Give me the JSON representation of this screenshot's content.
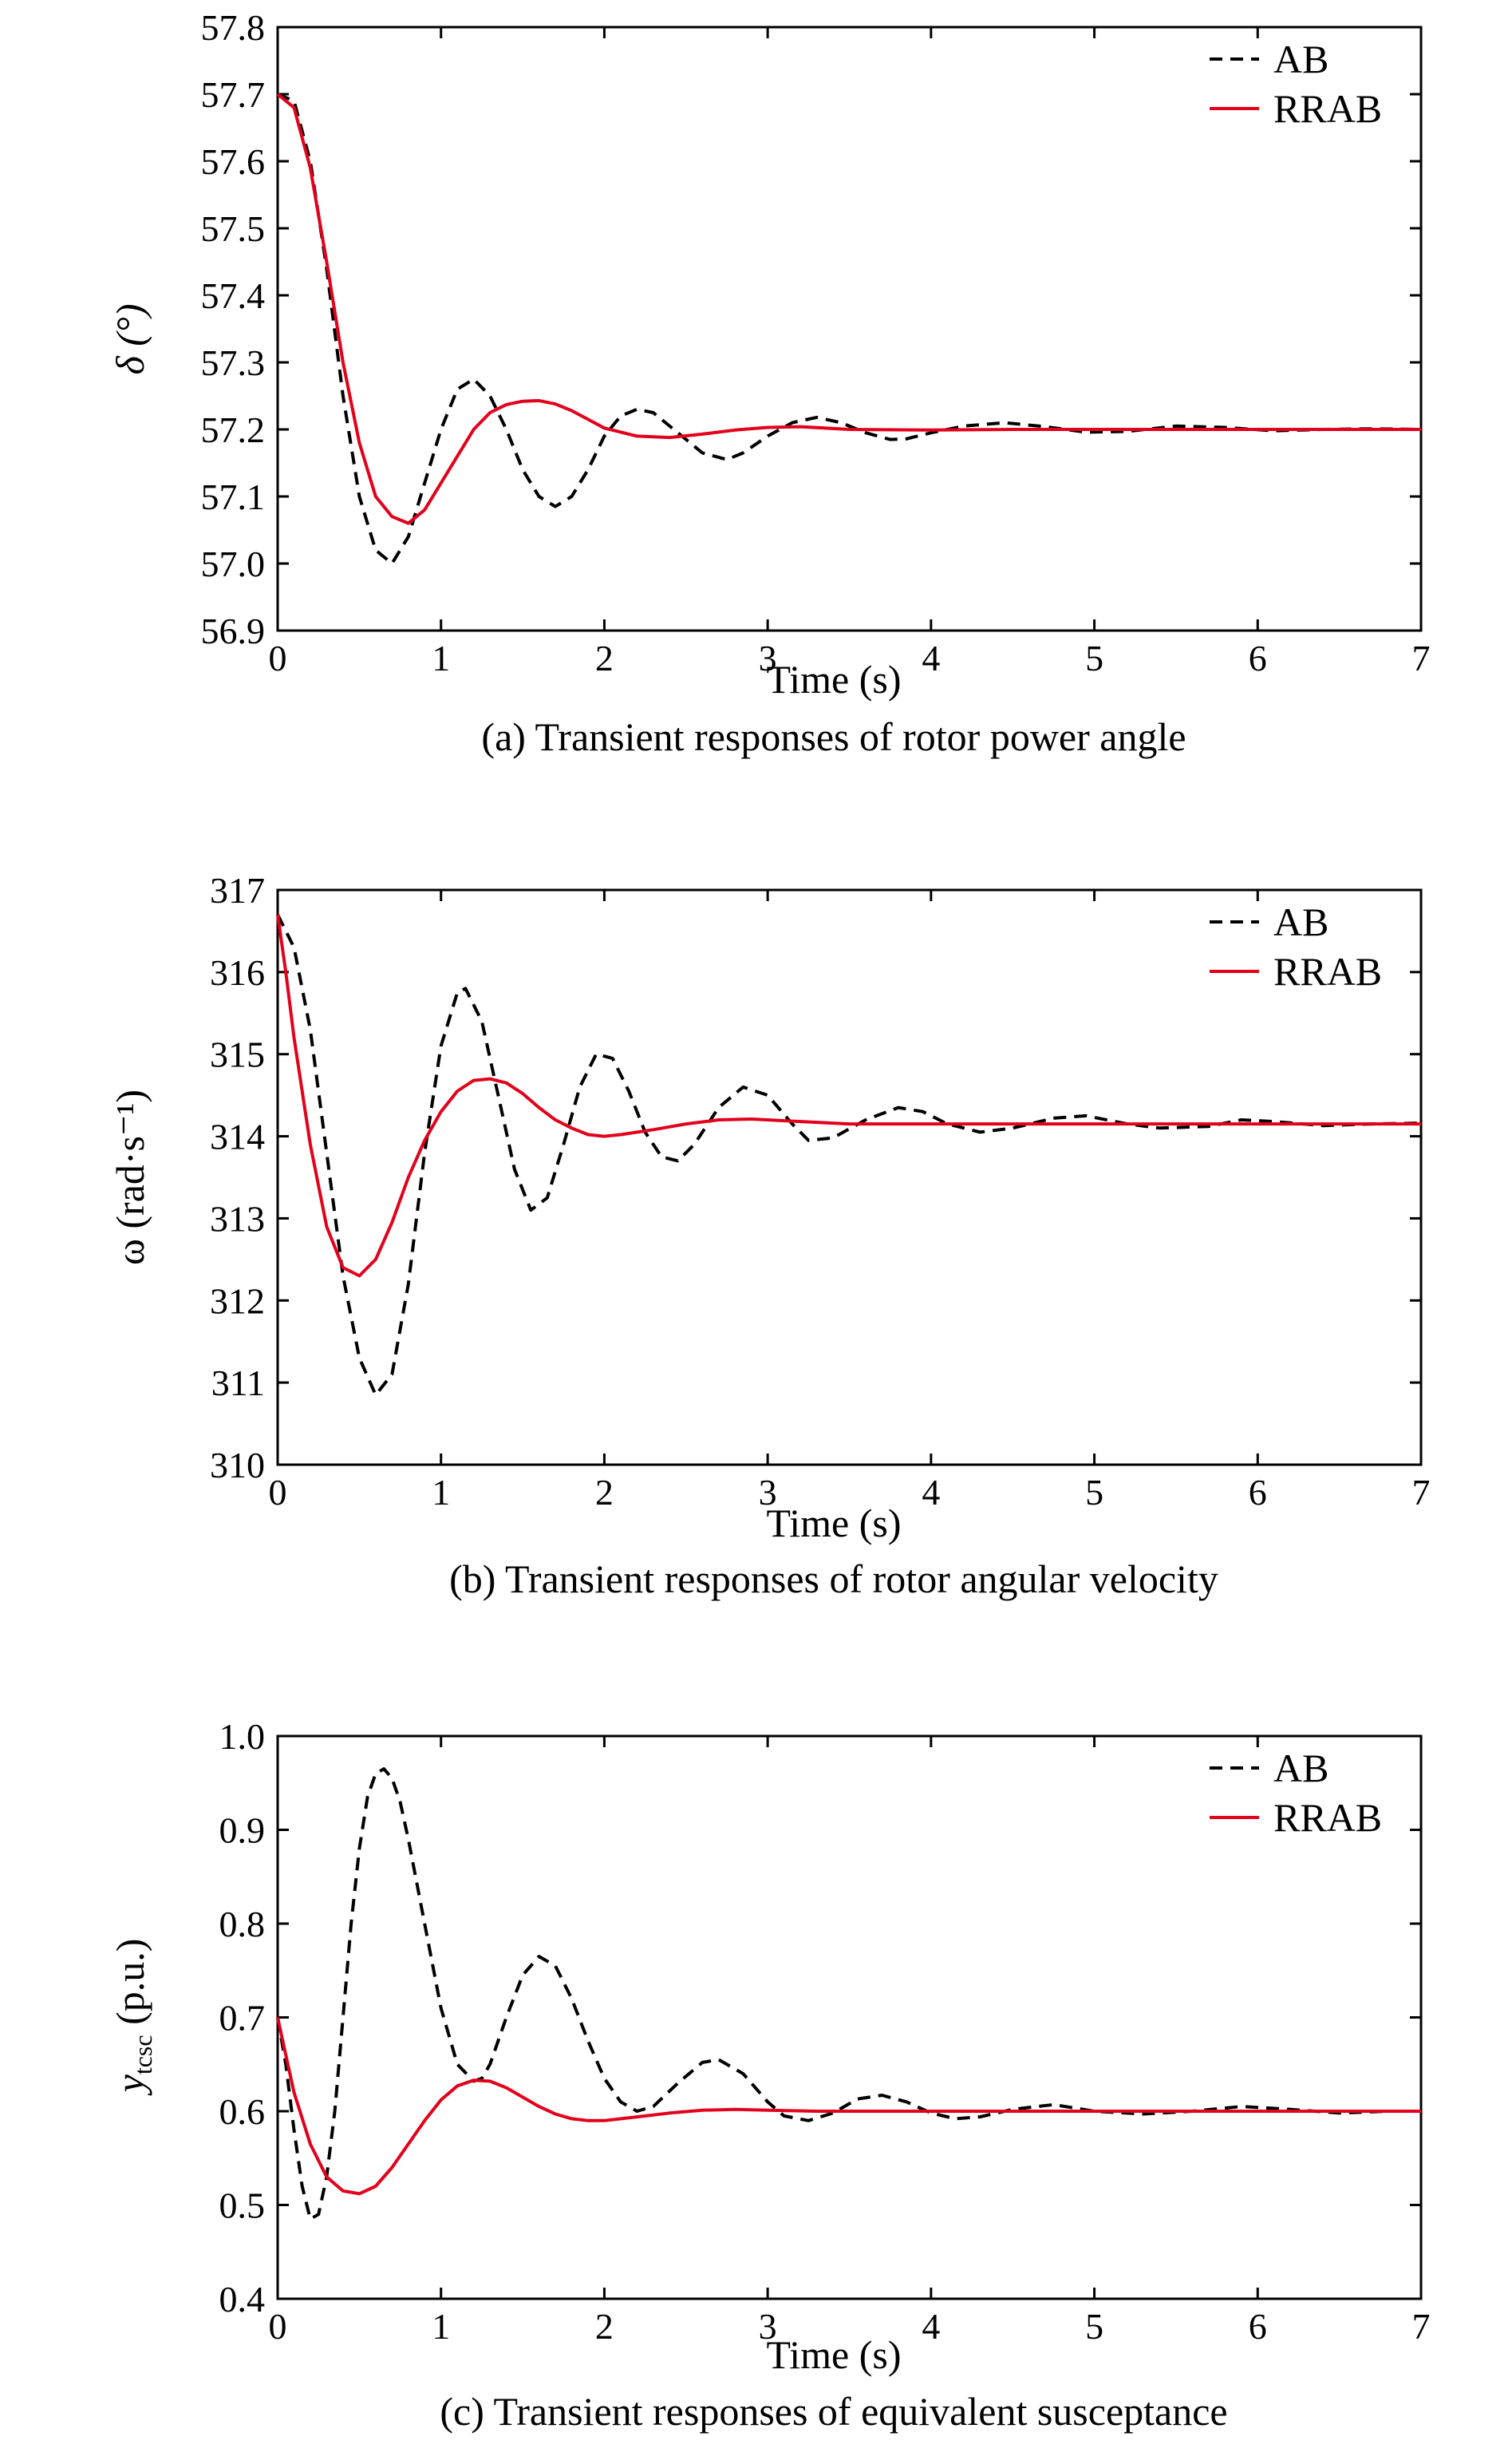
{
  "colors": {
    "ab": "#000000",
    "rrab": "#e3001b",
    "axis": "#000000"
  },
  "chart_data": [
    {
      "type": "line",
      "caption": "(a) Transient responses of rotor power angle",
      "xlabel": "Time (s)",
      "ylabel": "δ (°)",
      "xlim": [
        0,
        7
      ],
      "ylim": [
        56.9,
        57.8
      ],
      "xticks": [
        "0",
        "1",
        "2",
        "3",
        "4",
        "5",
        "6",
        "7"
      ],
      "yticks": [
        "56.9",
        "57.0",
        "57.1",
        "57.2",
        "57.3",
        "57.4",
        "57.5",
        "57.6",
        "57.7",
        "57.8"
      ],
      "legend": {
        "position": "top-right"
      },
      "series": [
        {
          "name": "AB",
          "style": "dashed",
          "x": [
            0,
            0.1,
            0.2,
            0.3,
            0.4,
            0.5,
            0.6,
            0.7,
            0.8,
            0.9,
            1.0,
            1.1,
            1.2,
            1.3,
            1.4,
            1.5,
            1.6,
            1.7,
            1.8,
            1.9,
            2.0,
            2.1,
            2.2,
            2.3,
            2.45,
            2.6,
            2.75,
            2.85,
            3.0,
            3.15,
            3.3,
            3.45,
            3.6,
            3.75,
            3.85,
            4.0,
            4.2,
            4.45,
            4.7,
            4.95,
            5.2,
            5.5,
            5.8,
            6.1,
            6.4,
            6.7,
            7.0
          ],
          "y": [
            57.7,
            57.69,
            57.6,
            57.44,
            57.25,
            57.1,
            57.02,
            57.0,
            57.04,
            57.12,
            57.2,
            57.26,
            57.275,
            57.25,
            57.2,
            57.14,
            57.1,
            57.085,
            57.1,
            57.14,
            57.19,
            57.22,
            57.23,
            57.225,
            57.195,
            57.165,
            57.155,
            57.165,
            57.19,
            57.21,
            57.218,
            57.21,
            57.195,
            57.185,
            57.186,
            57.195,
            57.205,
            57.21,
            57.204,
            57.196,
            57.197,
            57.205,
            57.203,
            57.198,
            57.2,
            57.201,
            57.2
          ]
        },
        {
          "name": "RRAB",
          "style": "solid",
          "x": [
            0,
            0.1,
            0.2,
            0.3,
            0.4,
            0.5,
            0.6,
            0.7,
            0.8,
            0.9,
            1.0,
            1.1,
            1.2,
            1.3,
            1.4,
            1.5,
            1.6,
            1.7,
            1.8,
            1.9,
            2.0,
            2.2,
            2.4,
            2.6,
            2.8,
            3.0,
            3.2,
            3.5,
            4.0,
            4.5,
            5.0,
            6.0,
            7.0
          ],
          "y": [
            57.7,
            57.68,
            57.59,
            57.45,
            57.3,
            57.18,
            57.1,
            57.07,
            57.06,
            57.08,
            57.12,
            57.16,
            57.2,
            57.225,
            57.237,
            57.242,
            57.243,
            57.238,
            57.228,
            57.215,
            57.202,
            57.19,
            57.188,
            57.193,
            57.199,
            57.203,
            57.204,
            57.2,
            57.199,
            57.2,
            57.2,
            57.2,
            57.2
          ]
        }
      ]
    },
    {
      "type": "line",
      "caption": "(b) Transient responses of rotor angular velocity",
      "xlabel": "Time (s)",
      "ylabel": "ω (rad·s⁻¹)",
      "xlim": [
        0,
        7
      ],
      "ylim": [
        310,
        317
      ],
      "xticks": [
        "0",
        "1",
        "2",
        "3",
        "4",
        "5",
        "6",
        "7"
      ],
      "yticks": [
        "310",
        "311",
        "312",
        "313",
        "314",
        "315",
        "316",
        "317"
      ],
      "legend": {
        "position": "top-right"
      },
      "series": [
        {
          "name": "AB",
          "style": "dashed",
          "x": [
            0,
            0.1,
            0.2,
            0.3,
            0.4,
            0.5,
            0.6,
            0.7,
            0.8,
            0.9,
            1.0,
            1.1,
            1.15,
            1.25,
            1.35,
            1.45,
            1.55,
            1.65,
            1.75,
            1.85,
            1.95,
            2.05,
            2.15,
            2.25,
            2.35,
            2.45,
            2.55,
            2.7,
            2.85,
            3.0,
            3.15,
            3.25,
            3.4,
            3.6,
            3.8,
            3.95,
            4.1,
            4.3,
            4.5,
            4.75,
            4.95,
            5.2,
            5.4,
            5.7,
            5.9,
            6.1,
            6.4,
            6.7,
            7.0
          ],
          "y": [
            316.7,
            316.3,
            315.3,
            313.8,
            312.3,
            311.3,
            310.85,
            311.1,
            312.2,
            313.8,
            315.1,
            315.75,
            315.8,
            315.4,
            314.5,
            313.6,
            313.1,
            313.25,
            313.9,
            314.6,
            315.0,
            314.95,
            314.55,
            314.05,
            313.75,
            313.7,
            313.9,
            314.35,
            314.6,
            314.5,
            314.15,
            313.95,
            313.98,
            314.2,
            314.35,
            314.3,
            314.15,
            314.05,
            314.1,
            314.22,
            314.25,
            314.15,
            314.1,
            314.12,
            314.2,
            314.18,
            314.13,
            314.15,
            314.16
          ]
        },
        {
          "name": "RRAB",
          "style": "solid",
          "x": [
            0,
            0.05,
            0.1,
            0.2,
            0.3,
            0.4,
            0.5,
            0.6,
            0.7,
            0.8,
            0.9,
            1.0,
            1.1,
            1.2,
            1.3,
            1.4,
            1.5,
            1.6,
            1.7,
            1.8,
            1.9,
            2.0,
            2.1,
            2.3,
            2.5,
            2.7,
            2.9,
            3.2,
            3.5,
            4.0,
            4.5,
            5.0,
            6.0,
            7.0
          ],
          "y": [
            316.7,
            316.0,
            315.2,
            313.9,
            312.9,
            312.4,
            312.3,
            312.5,
            312.95,
            313.5,
            313.95,
            314.3,
            314.55,
            314.68,
            314.7,
            314.65,
            314.52,
            314.35,
            314.2,
            314.1,
            314.02,
            314.0,
            314.02,
            314.08,
            314.15,
            314.2,
            314.21,
            314.18,
            314.15,
            314.15,
            314.15,
            314.15,
            314.15,
            314.15
          ]
        }
      ]
    },
    {
      "type": "line",
      "caption": "(c) Transient responses of equivalent susceptance",
      "xlabel": "Time (s)",
      "ylabel": "ytcsc (p.u.)",
      "ylabel_main": "y",
      "ylabel_sub": "tcsc",
      "ylabel_rest": " (p.u.)",
      "xlim": [
        0,
        7
      ],
      "ylim": [
        0.4,
        1.0
      ],
      "xticks": [
        "0",
        "1",
        "2",
        "3",
        "4",
        "5",
        "6",
        "7"
      ],
      "yticks": [
        "0.4",
        "0.5",
        "0.6",
        "0.7",
        "0.8",
        "0.9",
        "1.0"
      ],
      "legend": {
        "position": "top-right"
      },
      "series": [
        {
          "name": "AB",
          "style": "dashed",
          "x": [
            0,
            0.05,
            0.1,
            0.15,
            0.2,
            0.25,
            0.3,
            0.35,
            0.4,
            0.45,
            0.5,
            0.55,
            0.6,
            0.65,
            0.7,
            0.75,
            0.8,
            0.9,
            1.0,
            1.1,
            1.2,
            1.25,
            1.3,
            1.4,
            1.5,
            1.6,
            1.7,
            1.8,
            1.9,
            2.0,
            2.1,
            2.2,
            2.3,
            2.45,
            2.6,
            2.7,
            2.85,
            3.0,
            3.1,
            3.25,
            3.4,
            3.55,
            3.7,
            3.85,
            4.0,
            4.15,
            4.3,
            4.5,
            4.75,
            5.0,
            5.3,
            5.6,
            5.9,
            6.2,
            6.5,
            6.8,
            7.0
          ],
          "y": [
            0.7,
            0.65,
            0.58,
            0.52,
            0.485,
            0.49,
            0.53,
            0.6,
            0.7,
            0.8,
            0.88,
            0.935,
            0.96,
            0.965,
            0.955,
            0.93,
            0.89,
            0.8,
            0.71,
            0.65,
            0.632,
            0.635,
            0.65,
            0.7,
            0.745,
            0.765,
            0.755,
            0.72,
            0.675,
            0.635,
            0.61,
            0.6,
            0.605,
            0.63,
            0.652,
            0.655,
            0.64,
            0.61,
            0.595,
            0.59,
            0.598,
            0.613,
            0.617,
            0.61,
            0.598,
            0.592,
            0.594,
            0.602,
            0.607,
            0.6,
            0.597,
            0.6,
            0.605,
            0.602,
            0.598,
            0.6,
            0.6
          ]
        },
        {
          "name": "RRAB",
          "style": "solid",
          "x": [
            0,
            0.05,
            0.1,
            0.2,
            0.3,
            0.4,
            0.5,
            0.6,
            0.7,
            0.8,
            0.9,
            1.0,
            1.1,
            1.2,
            1.3,
            1.4,
            1.5,
            1.6,
            1.7,
            1.8,
            1.9,
            2.0,
            2.2,
            2.4,
            2.6,
            2.8,
            3.0,
            3.3,
            3.6,
            4.0,
            4.5,
            5.0,
            6.0,
            7.0
          ],
          "y": [
            0.7,
            0.66,
            0.62,
            0.565,
            0.53,
            0.515,
            0.512,
            0.52,
            0.54,
            0.565,
            0.59,
            0.612,
            0.627,
            0.633,
            0.632,
            0.625,
            0.615,
            0.605,
            0.597,
            0.592,
            0.59,
            0.59,
            0.594,
            0.598,
            0.601,
            0.602,
            0.601,
            0.6,
            0.6,
            0.6,
            0.6,
            0.6,
            0.6,
            0.6
          ]
        }
      ]
    }
  ]
}
